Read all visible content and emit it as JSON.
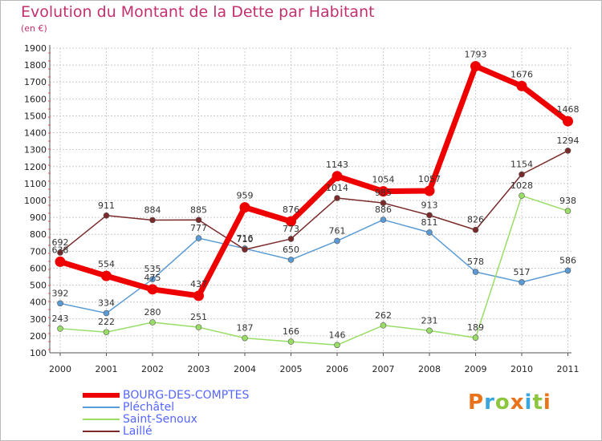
{
  "page": {
    "title": "Evolution du Montant de la Dette par Habitant",
    "subtitle": "(en €)",
    "brand_logo": "Proxiti"
  },
  "colors": {
    "title": "#c3306f",
    "legend_text": "#5566ff",
    "grid": "#cccccc"
  },
  "chart_data": {
    "type": "line",
    "title": "Evolution du Montant de la Dette par Habitant",
    "subtitle": "(en €)",
    "xlabel": "",
    "ylabel": "",
    "x": [
      "2000",
      "2001",
      "2002",
      "2003",
      "2004",
      "2005",
      "2006",
      "2007",
      "2008",
      "2009",
      "2010",
      "2011"
    ],
    "ylim": [
      100,
      1900
    ],
    "yticks": [
      100,
      200,
      300,
      400,
      500,
      600,
      700,
      800,
      900,
      1000,
      1100,
      1200,
      1300,
      1400,
      1500,
      1600,
      1700,
      1800,
      1900
    ],
    "grid": true,
    "legend_position": "bottom-left",
    "series": [
      {
        "name": "BOURG-DES-COMPTES",
        "color": "#ee0000",
        "emphasis": true,
        "values": [
          638,
          554,
          475,
          437,
          959,
          876,
          1143,
          1054,
          1057,
          1793,
          1676,
          1468
        ]
      },
      {
        "name": "Pléchâtel",
        "color": "#5b9bd5",
        "emphasis": false,
        "values": [
          392,
          334,
          535,
          777,
          716,
          650,
          761,
          886,
          811,
          578,
          517,
          586
        ]
      },
      {
        "name": "Saint-Senoux",
        "color": "#99dd66",
        "emphasis": false,
        "values": [
          243,
          222,
          280,
          251,
          187,
          166,
          146,
          262,
          231,
          189,
          1028,
          938
        ]
      },
      {
        "name": "Laillé",
        "color": "#7a2a2a",
        "emphasis": false,
        "values": [
          692,
          911,
          884,
          885,
          710,
          773,
          1014,
          985,
          913,
          826,
          1154,
          1294
        ]
      }
    ]
  }
}
